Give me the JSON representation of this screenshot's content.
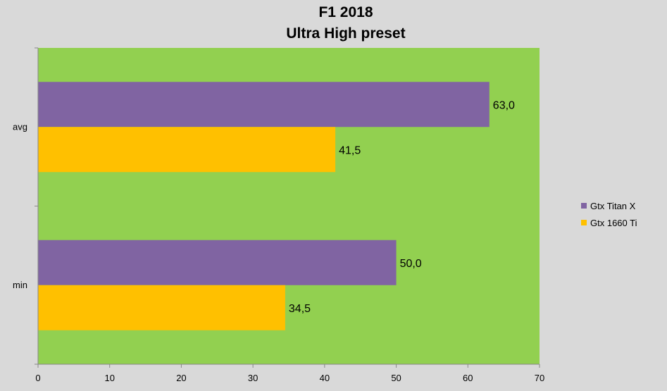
{
  "chart_data": {
    "type": "bar",
    "orientation": "horizontal",
    "title": "F1 2018",
    "subtitle": "Ultra High preset",
    "categories": [
      "avg",
      "min"
    ],
    "series": [
      {
        "name": "Gtx Titan X",
        "color": "#8064a2",
        "values": [
          63.0,
          50.0
        ],
        "labels": [
          "63,0",
          "50,0"
        ]
      },
      {
        "name": "Gtx 1660 Ti",
        "color": "#ffc000",
        "values": [
          41.5,
          34.5
        ],
        "labels": [
          "41,5",
          "34,5"
        ]
      }
    ],
    "xlim": [
      0,
      70
    ],
    "xticks": [
      0,
      10,
      20,
      30,
      40,
      50,
      60,
      70
    ],
    "plot_background": "#92d050",
    "grid": false,
    "legend_position": "right"
  }
}
